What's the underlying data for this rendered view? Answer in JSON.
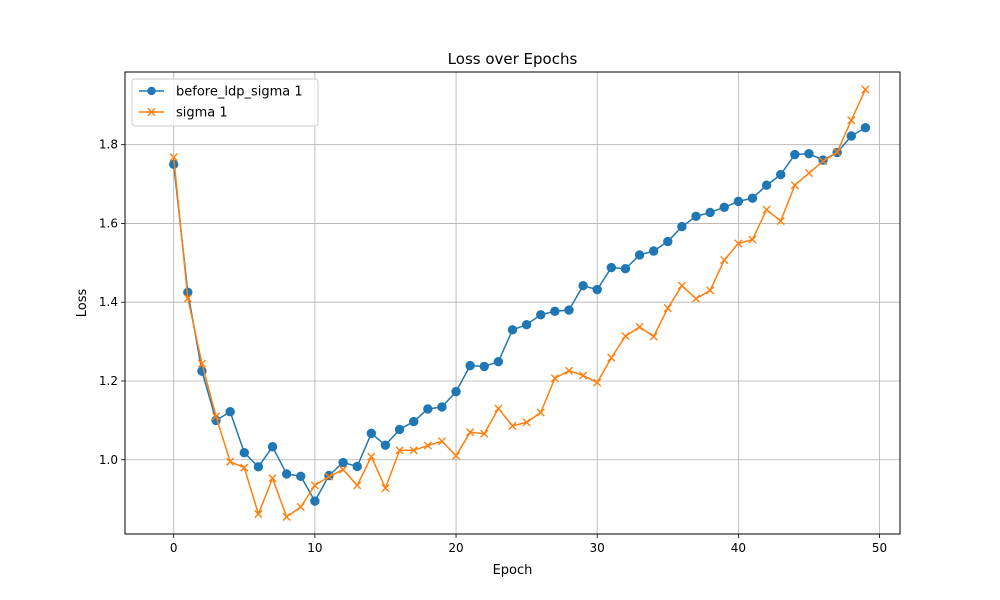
{
  "chart_data": {
    "type": "line",
    "title": "Loss over Epochs",
    "xlabel": "Epoch",
    "ylabel": "Loss",
    "xlim": [
      -3.45,
      51.45
    ],
    "ylim": [
      0.8115,
      1.9845
    ],
    "xticks": [
      0,
      10,
      20,
      30,
      40,
      50
    ],
    "yticks": [
      1.0,
      1.2,
      1.4,
      1.6,
      1.8
    ],
    "grid": true,
    "legend_position": "top-left",
    "x": [
      0,
      1,
      2,
      3,
      4,
      5,
      6,
      7,
      8,
      9,
      10,
      11,
      12,
      13,
      14,
      15,
      16,
      17,
      18,
      19,
      20,
      21,
      22,
      23,
      24,
      25,
      26,
      27,
      28,
      29,
      30,
      31,
      32,
      33,
      34,
      35,
      36,
      37,
      38,
      39,
      40,
      41,
      42,
      43,
      44,
      45,
      46,
      47,
      48,
      49
    ],
    "series": [
      {
        "name": "before_ldp_sigma 1",
        "color": "#1f77b4",
        "marker": "circle",
        "values": [
          1.75,
          1.425,
          1.225,
          1.1,
          1.122,
          1.018,
          0.982,
          1.033,
          0.964,
          0.958,
          0.895,
          0.96,
          0.993,
          0.983,
          1.067,
          1.037,
          1.077,
          1.097,
          1.129,
          1.134,
          1.173,
          1.239,
          1.237,
          1.249,
          1.33,
          1.343,
          1.368,
          1.377,
          1.38,
          1.442,
          1.432,
          1.488,
          1.485,
          1.52,
          1.53,
          1.554,
          1.592,
          1.618,
          1.628,
          1.641,
          1.656,
          1.664,
          1.697,
          1.724,
          1.775,
          1.777,
          1.761,
          1.78,
          1.822,
          1.843
        ]
      },
      {
        "name": "sigma 1",
        "color": "#ff7f0e",
        "marker": "x",
        "values": [
          1.768,
          1.41,
          1.244,
          1.11,
          0.995,
          0.98,
          0.862,
          0.953,
          0.855,
          0.88,
          0.935,
          0.957,
          0.975,
          0.935,
          1.008,
          0.928,
          1.024,
          1.024,
          1.036,
          1.047,
          1.01,
          1.07,
          1.066,
          1.13,
          1.086,
          1.095,
          1.12,
          1.207,
          1.226,
          1.214,
          1.196,
          1.259,
          1.314,
          1.337,
          1.313,
          1.385,
          1.442,
          1.409,
          1.43,
          1.507,
          1.549,
          1.559,
          1.635,
          1.606,
          1.697,
          1.728,
          1.758,
          1.781,
          1.862,
          1.94
        ]
      }
    ]
  }
}
